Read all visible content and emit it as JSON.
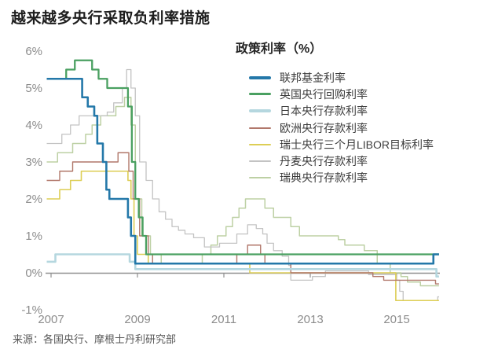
{
  "page": {
    "title": "越来越多央行采取负利率措施",
    "source": "来源：各国央行、摩根士丹利研究部"
  },
  "legend": {
    "title": "政策利率（%）"
  },
  "chart_data": {
    "type": "line",
    "step": true,
    "title": "越来越多央行采取负利率措施",
    "xlabel": "",
    "ylabel": "政策利率（%）",
    "grid": false,
    "legend_position": "top-right",
    "x_axis": {
      "ticks": [
        2007,
        2009,
        2011,
        2013,
        2015
      ],
      "range": [
        2006.85,
        2016.1
      ]
    },
    "y_axis": {
      "ticks": [
        6,
        5,
        4,
        3,
        2,
        1,
        0,
        -1
      ],
      "unit": "%",
      "range": [
        -1,
        6
      ]
    },
    "series": [
      {
        "id": "fed",
        "name": "联邦基金利率",
        "color": "#2478a9",
        "width": 2.6,
        "points": [
          [
            2006.9,
            5.25
          ],
          [
            2007.72,
            4.75
          ],
          [
            2007.85,
            4.5
          ],
          [
            2008.0,
            4.25
          ],
          [
            2008.07,
            3.5
          ],
          [
            2008.2,
            3.0
          ],
          [
            2008.28,
            2.25
          ],
          [
            2008.35,
            2.0
          ],
          [
            2008.78,
            1.5
          ],
          [
            2008.85,
            1.0
          ],
          [
            2008.95,
            0.25
          ],
          [
            2015.85,
            0.5
          ],
          [
            2015.98,
            0.5
          ]
        ]
      },
      {
        "id": "uk",
        "name": "英国央行回购利率",
        "color": "#4aa061",
        "width": 2.3,
        "points": [
          [
            2006.9,
            5.25
          ],
          [
            2007.35,
            5.5
          ],
          [
            2007.55,
            5.75
          ],
          [
            2007.95,
            5.5
          ],
          [
            2008.1,
            5.25
          ],
          [
            2008.3,
            5.0
          ],
          [
            2008.78,
            4.5
          ],
          [
            2008.87,
            3.0
          ],
          [
            2008.95,
            2.0
          ],
          [
            2009.03,
            1.5
          ],
          [
            2009.12,
            1.0
          ],
          [
            2009.2,
            0.5
          ],
          [
            2015.98,
            0.5
          ]
        ]
      },
      {
        "id": "japan",
        "name": "日本央行存款利率",
        "color": "#b5d7df",
        "width": 2.6,
        "points": [
          [
            2006.9,
            0.3
          ],
          [
            2007.1,
            0.5
          ],
          [
            2008.82,
            0.3
          ],
          [
            2008.95,
            0.1
          ],
          [
            2015.92,
            -0.1
          ],
          [
            2015.98,
            -0.1
          ]
        ]
      },
      {
        "id": "ecb",
        "name": "欧洲央行存款利率",
        "color": "#b1776a",
        "width": 1.4,
        "points": [
          [
            2006.9,
            2.5
          ],
          [
            2007.2,
            2.75
          ],
          [
            2007.5,
            3.0
          ],
          [
            2008.55,
            3.25
          ],
          [
            2008.8,
            2.75
          ],
          [
            2008.9,
            2.0
          ],
          [
            2009.05,
            1.0
          ],
          [
            2009.25,
            0.5
          ],
          [
            2009.35,
            0.25
          ],
          [
            2011.3,
            0.5
          ],
          [
            2011.55,
            0.75
          ],
          [
            2011.85,
            0.5
          ],
          [
            2011.95,
            0.25
          ],
          [
            2012.55,
            0.0
          ],
          [
            2014.45,
            -0.1
          ],
          [
            2014.7,
            -0.2
          ],
          [
            2015.9,
            -0.3
          ],
          [
            2015.98,
            -0.3
          ]
        ]
      },
      {
        "id": "snb",
        "name": "瑞士央行三个月LIBOR目标利率",
        "color": "#ddce55",
        "width": 1.6,
        "points": [
          [
            2006.9,
            2.0
          ],
          [
            2007.2,
            2.25
          ],
          [
            2007.45,
            2.5
          ],
          [
            2007.7,
            2.75
          ],
          [
            2008.78,
            2.5
          ],
          [
            2008.85,
            2.0
          ],
          [
            2008.92,
            1.0
          ],
          [
            2009.0,
            0.5
          ],
          [
            2009.25,
            0.25
          ],
          [
            2011.6,
            0.0
          ],
          [
            2014.98,
            -0.75
          ],
          [
            2015.98,
            -0.75
          ]
        ]
      },
      {
        "id": "denmark",
        "name": "丹麦央行存款利率",
        "color": "#c3c3c3",
        "width": 1.3,
        "points": [
          [
            2006.9,
            3.5
          ],
          [
            2007.25,
            3.75
          ],
          [
            2007.45,
            4.0
          ],
          [
            2007.65,
            4.25
          ],
          [
            2008.3,
            4.35
          ],
          [
            2008.45,
            4.6
          ],
          [
            2008.65,
            5.0
          ],
          [
            2008.75,
            5.5
          ],
          [
            2008.85,
            5.0
          ],
          [
            2008.95,
            4.25
          ],
          [
            2009.05,
            3.0
          ],
          [
            2009.2,
            2.5
          ],
          [
            2009.35,
            2.0
          ],
          [
            2009.5,
            1.65
          ],
          [
            2009.65,
            1.45
          ],
          [
            2009.8,
            1.25
          ],
          [
            2009.95,
            1.15
          ],
          [
            2010.1,
            1.05
          ],
          [
            2010.3,
            0.95
          ],
          [
            2010.55,
            0.7
          ],
          [
            2010.9,
            0.8
          ],
          [
            2011.3,
            1.05
          ],
          [
            2011.55,
            1.3
          ],
          [
            2011.75,
            1.2
          ],
          [
            2011.9,
            1.05
          ],
          [
            2012.0,
            0.8
          ],
          [
            2012.15,
            0.6
          ],
          [
            2012.35,
            0.45
          ],
          [
            2012.5,
            0.2
          ],
          [
            2012.55,
            -0.2
          ],
          [
            2013.05,
            -0.1
          ],
          [
            2013.35,
            0.05
          ],
          [
            2014.35,
            -0.05
          ],
          [
            2015.0,
            -0.2
          ],
          [
            2015.07,
            -0.5
          ],
          [
            2015.15,
            -0.75
          ],
          [
            2015.95,
            -0.65
          ],
          [
            2015.98,
            -0.65
          ]
        ]
      },
      {
        "id": "sweden",
        "name": "瑞典央行存款利率",
        "color": "#bdd0a4",
        "width": 1.5,
        "points": [
          [
            2006.9,
            3.0
          ],
          [
            2007.15,
            3.25
          ],
          [
            2007.5,
            3.5
          ],
          [
            2007.8,
            3.75
          ],
          [
            2007.95,
            4.0
          ],
          [
            2008.15,
            4.25
          ],
          [
            2008.5,
            4.5
          ],
          [
            2008.7,
            4.75
          ],
          [
            2008.85,
            4.0
          ],
          [
            2008.95,
            2.0
          ],
          [
            2009.1,
            1.0
          ],
          [
            2009.3,
            0.5
          ],
          [
            2009.55,
            0.25
          ],
          [
            2010.5,
            0.5
          ],
          [
            2010.7,
            0.75
          ],
          [
            2010.85,
            1.0
          ],
          [
            2011.05,
            1.25
          ],
          [
            2011.2,
            1.5
          ],
          [
            2011.35,
            1.75
          ],
          [
            2011.5,
            2.0
          ],
          [
            2011.95,
            1.75
          ],
          [
            2012.15,
            1.5
          ],
          [
            2012.55,
            1.25
          ],
          [
            2012.75,
            1.0
          ],
          [
            2013.65,
            0.9
          ],
          [
            2013.8,
            0.75
          ],
          [
            2014.25,
            0.6
          ],
          [
            2014.55,
            0.25
          ],
          [
            2014.85,
            0.0
          ],
          [
            2015.1,
            -0.1
          ],
          [
            2015.25,
            -0.25
          ],
          [
            2015.55,
            -0.35
          ],
          [
            2015.98,
            -0.35
          ]
        ]
      }
    ]
  }
}
